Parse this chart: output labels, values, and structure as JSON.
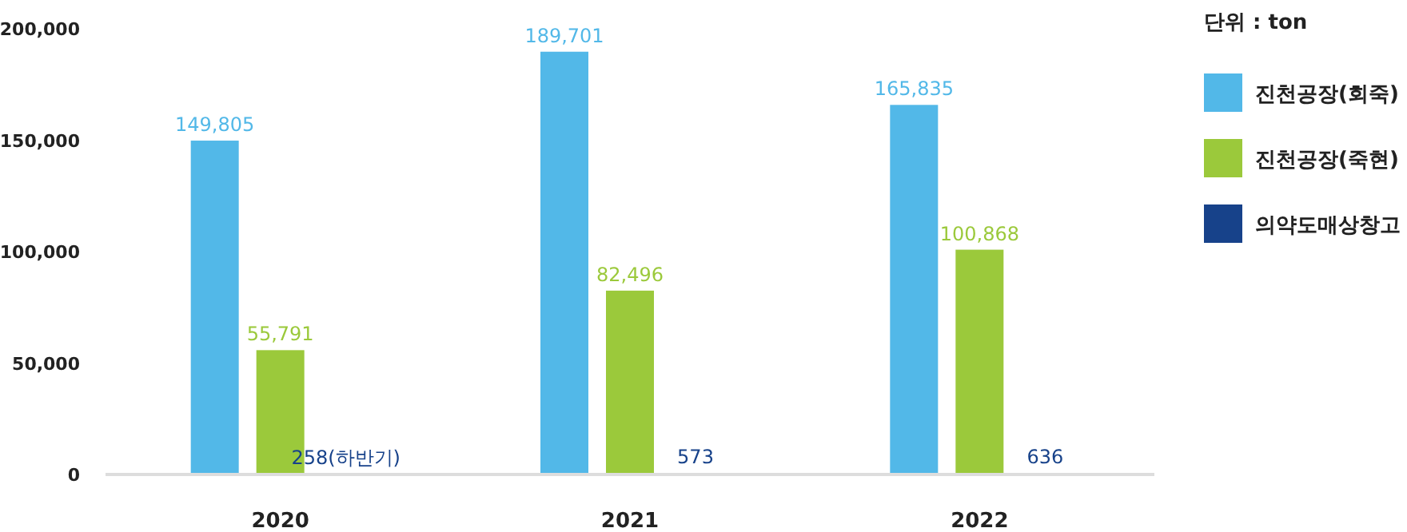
{
  "chart_data": {
    "type": "bar",
    "legend_title": "단위 : ton",
    "categories": [
      "2020",
      "2021",
      "2022"
    ],
    "series": [
      {
        "name": "진천공장(회죽)",
        "color": "#52b8e8",
        "values": [
          149805,
          189701,
          165835
        ],
        "value_labels": [
          "149,805",
          "189,701",
          "165,835"
        ]
      },
      {
        "name": "진천공장(죽현)",
        "color": "#9bc93b",
        "values": [
          55791,
          82496,
          100868
        ],
        "value_labels": [
          "55,791",
          "82,496",
          "100,868"
        ]
      },
      {
        "name": "의약도매상창고",
        "color": "#17428a",
        "values": [
          258,
          573,
          636
        ],
        "value_labels": [
          "258(하반기)",
          "573",
          "636"
        ]
      }
    ],
    "ylim": [
      0,
      200000
    ],
    "yticks": [
      {
        "value": 0,
        "label": "0"
      },
      {
        "value": 50000,
        "label": "50,000"
      },
      {
        "value": 100000,
        "label": "100,000"
      },
      {
        "value": 150000,
        "label": "150,000"
      },
      {
        "value": 200000,
        "label": "200,000"
      }
    ],
    "grid": false,
    "legend": "right"
  }
}
